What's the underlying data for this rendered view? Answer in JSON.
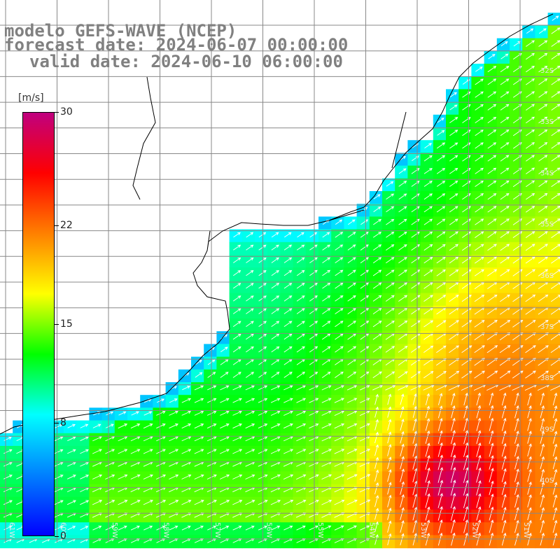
{
  "header": {
    "line1": "modelo GEFS-WAVE (NCEP)",
    "line2": "forecast date: 2024-06-07 00:00:00",
    "line3": "valid date: 2024-06-10 06:00:00"
  },
  "legend": {
    "unit": "[m/s]",
    "min": 0,
    "max": 30,
    "ticks": [
      {
        "value": 30,
        "label": "30"
      },
      {
        "value": 22,
        "label": "22"
      },
      {
        "value": 15,
        "label": "15"
      },
      {
        "value": 8,
        "label": "8"
      },
      {
        "value": 0,
        "label": "0"
      }
    ],
    "colors": [
      "#0000ff",
      "#0080ff",
      "#00ffff",
      "#00ff00",
      "#ffff00",
      "#ff8000",
      "#ff0000",
      "#c0007f"
    ]
  },
  "map": {
    "lat_labels": [
      "32S",
      "33S",
      "34S",
      "35S",
      "36S",
      "37S",
      "38S",
      "39S",
      "40S"
    ],
    "lon_labels": [
      "61W",
      "60W",
      "59W",
      "58W",
      "57W",
      "56W",
      "55W",
      "54W",
      "53W",
      "52W",
      "51W"
    ],
    "ocean_color": "#00ff00",
    "land_color": "#ffffff",
    "grid_color": "#808080",
    "arrow_color": "#ffffff"
  }
}
